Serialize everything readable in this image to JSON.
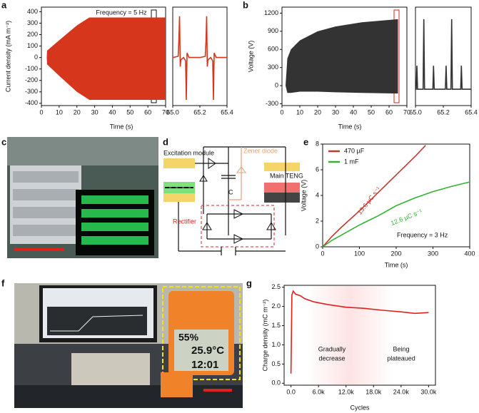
{
  "panels": {
    "labels": [
      "a",
      "b",
      "c",
      "d",
      "e",
      "f",
      "g"
    ]
  },
  "diagram": {
    "excitation": "Excitation module",
    "zener": "Zener diode",
    "capacitor": "C",
    "teng": "Main TENG",
    "rectifier": "Rectifier"
  },
  "photo_f": {
    "humidity": "55%",
    "temperature": "25.9°C",
    "time": "12:01"
  },
  "chart_data": [
    {
      "type": "area",
      "xlabel": "Time (s)",
      "ylabel": "Current density (mA m⁻²)",
      "annotations": [
        "Frequency = 5 Hz"
      ],
      "color": "#d6361b",
      "x": [
        0,
        3,
        3.2,
        10,
        20,
        27,
        70
      ],
      "series": [
        {
          "values": [
            0,
            0,
            60,
            150,
            280,
            350,
            350
          ]
        },
        {
          "values": [
            0,
            0,
            -60,
            -160,
            -300,
            -370,
            -370
          ]
        }
      ],
      "xlim": [
        0,
        70
      ],
      "ylim": [
        -420,
        440
      ],
      "xticks": [
        0,
        10,
        20,
        30,
        40,
        50,
        60,
        70
      ],
      "yticks": [
        -400,
        -300,
        -200,
        -100,
        0,
        100,
        200,
        300,
        400
      ]
    },
    {
      "type": "line",
      "color": "#d6361b",
      "x": [
        65.0,
        65.04,
        65.045,
        65.05,
        65.055,
        65.06,
        65.08,
        65.095,
        65.1,
        65.105,
        65.12,
        65.2,
        65.24,
        65.245,
        65.25,
        65.255,
        65.26,
        65.28,
        65.295,
        65.3,
        65.305,
        65.32,
        65.4
      ],
      "values": [
        0,
        10,
        150,
        360,
        -80,
        -20,
        0,
        -30,
        -370,
        40,
        0,
        0,
        10,
        150,
        360,
        -80,
        -20,
        0,
        -30,
        -370,
        40,
        0,
        0
      ],
      "xlim": [
        65,
        65.4
      ],
      "ylim": [
        -420,
        440
      ],
      "xticks": [
        {
          "value": 65,
          "label": "65.0"
        },
        {
          "value": 65.2,
          "label": "65.2"
        },
        {
          "value": 65.4,
          "label": "65.4"
        }
      ]
    },
    {
      "type": "area",
      "xlabel": "Time (s)",
      "ylabel": "Voltage (V)",
      "color": "#333333",
      "x": [
        0,
        2,
        3,
        5,
        10,
        20,
        30,
        45,
        65
      ],
      "series": [
        {
          "values": [
            0,
            0,
            450,
            600,
            750,
            900,
            980,
            1050,
            1100
          ]
        },
        {
          "values": [
            0,
            0,
            -120,
            -120,
            -100,
            -100,
            -110,
            -120,
            -130
          ]
        }
      ],
      "xlim": [
        0,
        70
      ],
      "ylim": [
        -330,
        1300
      ],
      "xticks": [
        0,
        10,
        20,
        30,
        40,
        50,
        60,
        70
      ],
      "yticks": [
        -300,
        0,
        300,
        600,
        900,
        1200
      ]
    },
    {
      "type": "line",
      "color": "#333333",
      "x": [
        65.0,
        65.005,
        65.01,
        65.015,
        65.055,
        65.06,
        65.065,
        65.125,
        65.13,
        65.135,
        65.215,
        65.22,
        65.225,
        65.255,
        65.26,
        65.265,
        65.325,
        65.33,
        65.335,
        65.4
      ],
      "values": [
        -60,
        -60,
        330,
        -60,
        -60,
        1100,
        -60,
        -60,
        330,
        -60,
        -60,
        330,
        -60,
        -60,
        1100,
        -60,
        -60,
        330,
        -60,
        -60
      ],
      "xlim": [
        65,
        65.4
      ],
      "ylim": [
        -330,
        1300
      ],
      "xticks": [
        {
          "value": 65,
          "label": "65.0"
        },
        {
          "value": 65.2,
          "label": "65.2"
        },
        {
          "value": 65.4,
          "label": "65.4"
        }
      ]
    },
    {
      "type": "line",
      "xlabel": "Time (s)",
      "ylabel": "Voltage (V)",
      "legend": "upper left",
      "annotations": [
        "13.6 µC s⁻¹",
        "12.6 µC s⁻¹",
        "Frequency = 3 Hz"
      ],
      "x": [
        0,
        25,
        50,
        100,
        150,
        200,
        250,
        280,
        300,
        350,
        400
      ],
      "series": [
        {
          "name": "470 µF",
          "color": "#c0392b",
          "values": [
            0,
            0.8,
            1.5,
            2.8,
            4.2,
            5.6,
            7.0,
            7.9,
            null,
            null,
            null
          ]
        },
        {
          "name": "1 mF",
          "color": "#33b233",
          "values": [
            0,
            0.5,
            0.9,
            1.7,
            2.4,
            3.2,
            3.8,
            4.1,
            4.3,
            4.7,
            5.05
          ]
        }
      ],
      "xlim": [
        0,
        400
      ],
      "ylim": [
        0,
        8
      ],
      "xticks": [
        0,
        100,
        200,
        300,
        400
      ],
      "yticks": [
        0,
        2,
        4,
        6,
        8
      ]
    },
    {
      "type": "line",
      "xlabel": "Cycles",
      "ylabel": "Charge density (mC m⁻²)",
      "color": "#e0201b",
      "annotations": [
        "Gradually",
        "decrease",
        "Being",
        "plateaued"
      ],
      "x": [
        0,
        200,
        500,
        1000,
        2000,
        3000,
        5000,
        8000,
        12000,
        16000,
        20000,
        24000,
        27000,
        30000
      ],
      "values": [
        0.25,
        2.3,
        2.4,
        2.32,
        2.28,
        2.2,
        2.12,
        2.05,
        1.98,
        1.95,
        1.9,
        1.86,
        1.82,
        1.84
      ],
      "xlim": [
        -1500,
        31500
      ],
      "ylim": [
        -0.05,
        2.55
      ],
      "xticks": [
        {
          "value": 0,
          "label": "0.0"
        },
        {
          "value": 6000,
          "label": "6.0k"
        },
        {
          "value": 12000,
          "label": "12.0k"
        },
        {
          "value": 18000,
          "label": "18.0k"
        },
        {
          "value": 24000,
          "label": "24.0k"
        },
        {
          "value": 30000,
          "label": "30.0k"
        }
      ],
      "yticks": [
        {
          "value": 0,
          "label": "0.0"
        },
        0.5,
        {
          "value": 1,
          "label": "1.0"
        },
        1.5,
        {
          "value": 2,
          "label": "2.0"
        },
        2.5
      ]
    }
  ]
}
